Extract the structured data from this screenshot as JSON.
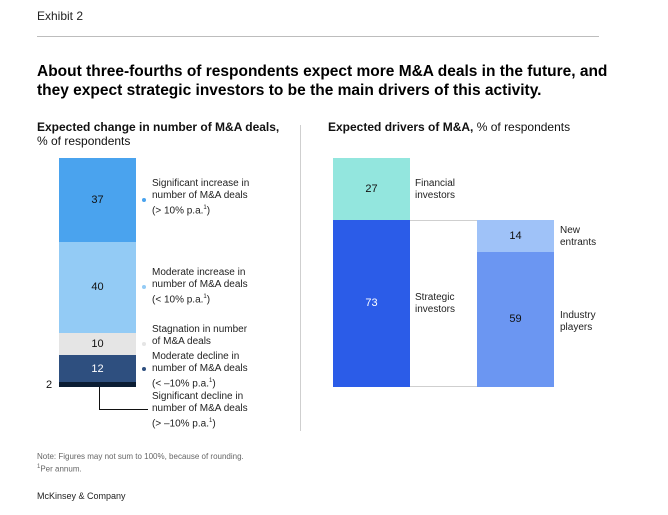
{
  "header": {
    "exhibit": "Exhibit 2",
    "title": "About three-fourths of respondents expect more M&A deals in the future, and they expect strategic investors to be the main drivers of this activity."
  },
  "colors": {
    "sig_increase": "#4aa3ee",
    "mod_increase": "#93cbf5",
    "stagnation": "#e5e5e5",
    "mod_decline": "#2e4f7f",
    "sig_decline": "#0b1d33",
    "financial": "#93e6de",
    "strategic": "#2b5ce8",
    "new_entrants": "#9fc2f8",
    "industry": "#6b96f2"
  },
  "chart_data": [
    {
      "type": "bar",
      "stacked": true,
      "title_bold": "Expected change in number of M&A deals,",
      "title_rest": "% of respondents",
      "unit": "% of respondents",
      "segments": [
        {
          "name": "Significant increase in number of M&A deals (> 10% p.a.1)",
          "value": 37,
          "label_lines": [
            "Significant increase in",
            "number of M&A deals",
            "(> 10% p.a."
          ],
          "color_key": "sig_increase"
        },
        {
          "name": "Moderate increase in number of M&A deals (< 10% p.a.1)",
          "value": 40,
          "label_lines": [
            "Moderate increase in",
            "number of M&A deals",
            "(< 10% p.a."
          ],
          "color_key": "mod_increase"
        },
        {
          "name": "Stagnation in number of M&A deals",
          "value": 10,
          "label_lines": [
            "Stagnation in number",
            "of M&A deals"
          ],
          "color_key": "stagnation"
        },
        {
          "name": "Moderate decline in number of M&A deals (< –10% p.a.1)",
          "value": 12,
          "label_lines": [
            "Moderate decline in",
            "number of M&A deals",
            "(< –10% p.a."
          ],
          "color_key": "mod_decline"
        },
        {
          "name": "Significant decline in number of M&A deals (> –10% p.a.1)",
          "value": 2,
          "label_lines": [
            "Significant decline in",
            "number of M&A deals",
            "(> –10% p.a."
          ],
          "color_key": "sig_decline"
        }
      ]
    },
    {
      "type": "bar",
      "stacked": true,
      "title_bold": "Expected drivers of M&A,",
      "title_rest": "% of respondents",
      "unit": "% of respondents",
      "groups": [
        {
          "name": "Financial investors",
          "value": 27,
          "label_lines": [
            "Financial",
            "investors"
          ],
          "color_key": "financial"
        },
        {
          "name": "Strategic investors",
          "value": 73,
          "label_lines": [
            "Strategic",
            "investors"
          ],
          "color_key": "strategic",
          "breakdown": [
            {
              "name": "New entrants",
              "value": 14,
              "label_lines": [
                "New",
                "entrants"
              ],
              "color_key": "new_entrants"
            },
            {
              "name": "Industry players",
              "value": 59,
              "label_lines": [
                "Industry",
                "players"
              ],
              "color_key": "industry"
            }
          ]
        }
      ]
    }
  ],
  "footer": {
    "note": "Note: Figures may not sum to 100%, because of rounding.",
    "footnote_marker": "1",
    "footnote_text": "Per annum.",
    "brand": "McKinsey & Company",
    "sup_marker": "1",
    "label_close": ")"
  }
}
